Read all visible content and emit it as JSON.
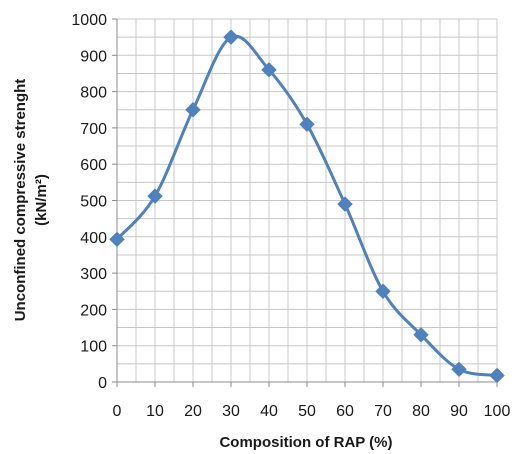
{
  "chart_data": {
    "type": "line",
    "xlabel": "Composition of RAP (%)",
    "ylabel_line1": "Unconfined compressive strenght",
    "ylabel_line2": "(kN/m²)",
    "xlim": [
      0,
      100
    ],
    "ylim": [
      0,
      1000
    ],
    "x_ticks": [
      0,
      10,
      20,
      30,
      40,
      50,
      60,
      70,
      80,
      90,
      100
    ],
    "y_ticks": [
      0,
      100,
      200,
      300,
      400,
      500,
      600,
      700,
      800,
      900,
      1000
    ],
    "x_minor_step": 5,
    "y_minor_step": 50,
    "grid": true,
    "smooth": true,
    "marker": "diamond",
    "series_color": "#4f81bd",
    "series": [
      {
        "x": [
          0,
          10,
          20,
          30,
          40,
          50,
          60,
          70,
          80,
          90,
          100
        ],
        "values": [
          393,
          512,
          750,
          950,
          860,
          710,
          490,
          250,
          130,
          35,
          18
        ]
      }
    ]
  }
}
